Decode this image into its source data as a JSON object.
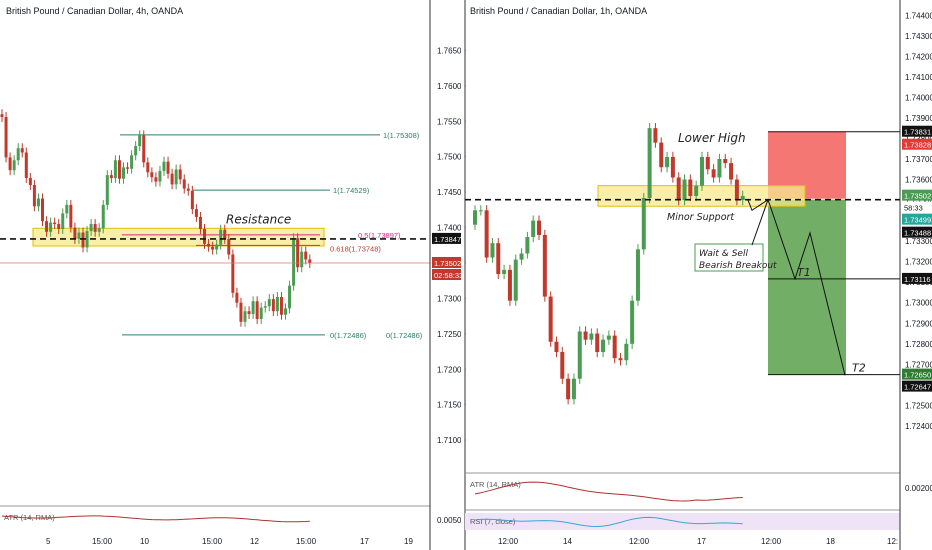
{
  "colors": {
    "up": "#26a69a",
    "down": "#c0392b",
    "upBar": "#4a9c52",
    "zone": "#f7e98e",
    "zoneBorder": "#e0c000",
    "risk": "#f25f5c",
    "reward": "#4f9a3f",
    "fib": "#2e7d6b",
    "fibPink": "#e0218a",
    "atr": "#b03030",
    "rsi": "#3aa6d6"
  },
  "chart_data": [
    {
      "type": "candlestick",
      "title": "British Pound / Canadian Dollar, 4h, OANDA",
      "ylim": [
        1.7,
        1.77
      ],
      "y_ticks": [
        "1.76500",
        "1.76000",
        "1.75500",
        "1.75000",
        "1.74500",
        "1.74000",
        "1.73500",
        "1.73000",
        "1.72500",
        "1.72000",
        "1.71500",
        "1.71000"
      ],
      "x_ticks": [
        "5",
        "15:00",
        "10",
        "15:00",
        "12",
        "15:00",
        "17",
        "19",
        "15:00"
      ],
      "price_labels": [
        {
          "value": "1.73847",
          "role": "current-line"
        },
        {
          "value": "1.73502",
          "role": "last-price"
        },
        {
          "value": "02:58:33",
          "role": "countdown"
        }
      ],
      "fib_labels": [
        "1(1.75308)",
        "1(1.74529)",
        "0.5(1.73897)",
        "0.618(1.73748)",
        "0(1.72486)",
        "0(1.72486)"
      ],
      "annotations": [
        "Resistance"
      ],
      "indicator": {
        "label": "ATR (14, RMA)",
        "ticks": [
          "0.00500"
        ]
      },
      "closes": [
        1.7556,
        1.7499,
        1.7481,
        1.7495,
        1.7512,
        1.7506,
        1.747,
        1.746,
        1.743,
        1.7441,
        1.7409,
        1.7394,
        1.7407,
        1.7405,
        1.7398,
        1.742,
        1.7432,
        1.74,
        1.7384,
        1.7393,
        1.7372,
        1.7395,
        1.7405,
        1.7394,
        1.7399,
        1.7432,
        1.7474,
        1.747,
        1.7495,
        1.7469,
        1.7485,
        1.7483,
        1.7502,
        1.7515,
        1.753,
        1.7492,
        1.7478,
        1.7471,
        1.7465,
        1.748,
        1.7493,
        1.7476,
        1.7461,
        1.7482,
        1.7468,
        1.7455,
        1.7452,
        1.7426,
        1.7415,
        1.7398,
        1.7377,
        1.7373,
        1.7369,
        1.7376,
        1.7397,
        1.7384,
        1.7362,
        1.7308,
        1.7294,
        1.7267,
        1.7282,
        1.7278,
        1.7296,
        1.7271,
        1.7287,
        1.7289,
        1.7299,
        1.7282,
        1.7302,
        1.7277,
        1.7286,
        1.7318,
        1.7385,
        1.7344,
        1.7366,
        1.7355,
        1.735
      ]
    },
    {
      "type": "candlestick",
      "title": "British Pound / Canadian Dollar, 1h, OANDA",
      "ylim": [
        1.721,
        1.745
      ],
      "y_ticks": [
        "1.74400",
        "1.74300",
        "1.74200",
        "1.74100",
        "1.74000",
        "1.73900",
        "1.73800",
        "1.73700",
        "1.73600",
        "1.73500",
        "1.73400",
        "1.73300",
        "1.73200",
        "1.73100",
        "1.73000",
        "1.72900",
        "1.72800",
        "1.72700",
        "1.72600",
        "1.72500",
        "1.72400"
      ],
      "x_ticks": [
        "12:00",
        "14",
        "12:00",
        "17",
        "12:00",
        "18",
        "12:"
      ],
      "price_labels": [
        {
          "value": "1.73831",
          "role": "stop-loss"
        },
        {
          "value": "1.73828",
          "role": "stop"
        },
        {
          "value": "1.73502",
          "role": "entry"
        },
        {
          "value": "58:33",
          "role": "countdown"
        },
        {
          "value": "1.73499",
          "role": "last"
        },
        {
          "value": "1.73488",
          "role": "level"
        },
        {
          "value": "1.73116",
          "role": "target-1"
        },
        {
          "value": "1.72650",
          "role": "target"
        },
        {
          "value": "1.72647",
          "role": "target-2"
        }
      ],
      "annotations": [
        "Lower High",
        "Minor Support",
        "Wait & Sell",
        "Bearish Breakout",
        "T1",
        "T2"
      ],
      "indicators": [
        {
          "label": "ATR (14, RMA)",
          "ticks": [
            "0.00200"
          ]
        },
        {
          "label": "RSI (7, close)",
          "ticks": []
        }
      ],
      "closes": [
        1.7345,
        1.7345,
        1.7322,
        1.7329,
        1.7314,
        1.7316,
        1.7301,
        1.7321,
        1.7324,
        1.7332,
        1.734,
        1.7333,
        1.7303,
        1.7281,
        1.7276,
        1.7263,
        1.7253,
        1.7263,
        1.7286,
        1.7282,
        1.7285,
        1.7276,
        1.7282,
        1.7284,
        1.7273,
        1.7272,
        1.728,
        1.7301,
        1.7326,
        1.7351,
        1.7385,
        1.7378,
        1.7366,
        1.7371,
        1.7361,
        1.735,
        1.736,
        1.7352,
        1.7357,
        1.7371,
        1.7365,
        1.7361,
        1.737,
        1.7368,
        1.736,
        1.735,
        1.7352
      ],
      "trade": {
        "entry": 1.73502,
        "stop": 1.73828,
        "target": 1.7265,
        "t1": 1.73116
      }
    }
  ]
}
